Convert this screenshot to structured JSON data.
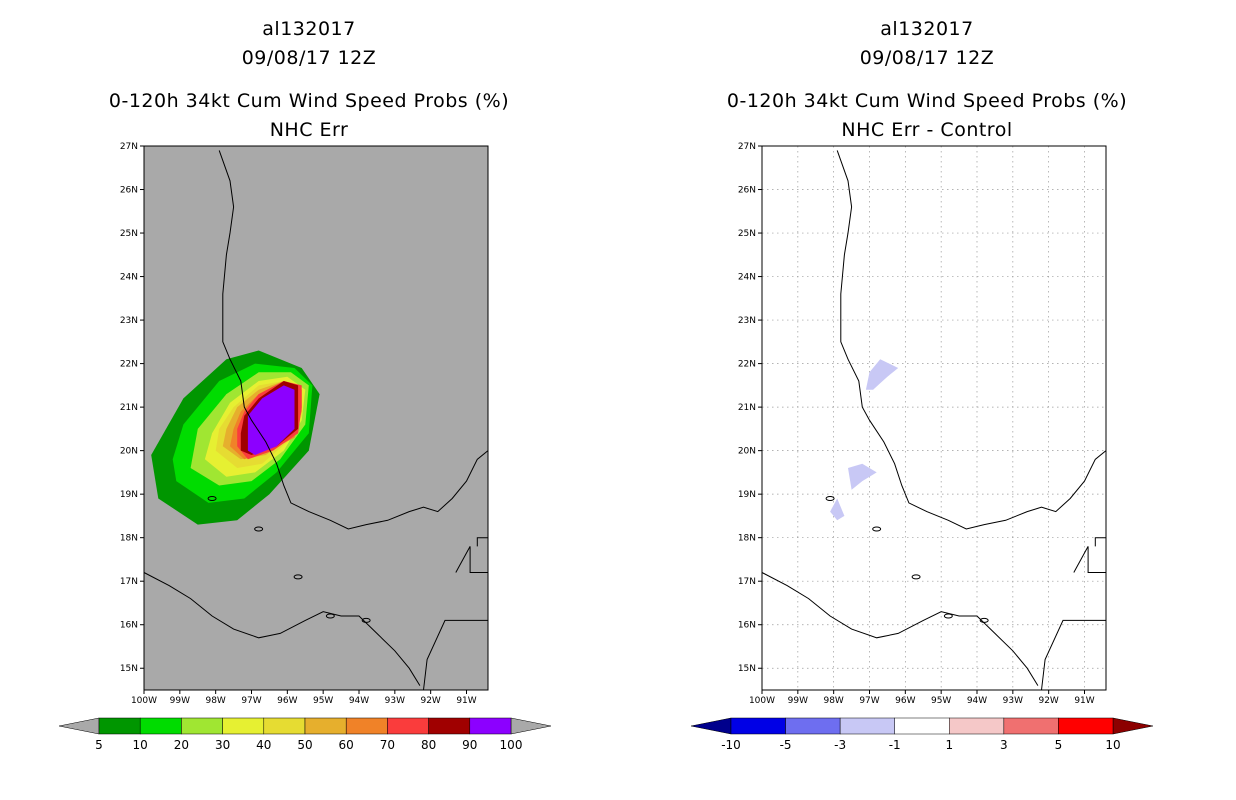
{
  "chart_data": [
    {
      "type": "contour-map",
      "title_lines": [
        "al132017",
        "09/08/17 12Z",
        "0-120h 34kt Cum Wind Speed Probs (%)",
        "NHC Err"
      ],
      "lon_range": [
        -100,
        -90.4
      ],
      "lat_range": [
        14.5,
        27
      ],
      "x_tick_labels": [
        "100W",
        "99W",
        "98W",
        "97W",
        "96W",
        "95W",
        "94W",
        "93W",
        "92W",
        "91W"
      ],
      "y_tick_labels": [
        "15N",
        "16N",
        "17N",
        "18N",
        "19N",
        "20N",
        "21N",
        "22N",
        "23N",
        "24N",
        "25N",
        "26N",
        "27N"
      ],
      "grid": false,
      "background_color": "#a9a9a9",
      "colorbar": {
        "levels": [
          "5",
          "10",
          "20",
          "30",
          "40",
          "50",
          "60",
          "70",
          "80",
          "90",
          "100"
        ],
        "colors": [
          "#009600",
          "#00dc00",
          "#a0e632",
          "#e6f032",
          "#e6dc32",
          "#e6af2d",
          "#f08228",
          "#fa3c3c",
          "#a00000",
          "#8c00ff"
        ],
        "extend_low_color": "#a9a9a9",
        "extend_high_color": "#a9a9a9"
      },
      "contours": [
        {
          "level": 5,
          "color": "#009600",
          "polygon": [
            [
              -99.6,
              18.9
            ],
            [
              -98.5,
              18.3
            ],
            [
              -97.4,
              18.4
            ],
            [
              -96.5,
              19.0
            ],
            [
              -95.4,
              20.0
            ],
            [
              -95.1,
              21.3
            ],
            [
              -95.6,
              21.9
            ],
            [
              -96.8,
              22.3
            ],
            [
              -97.7,
              22.1
            ],
            [
              -98.9,
              21.2
            ],
            [
              -99.8,
              19.9
            ]
          ]
        },
        {
          "level": 10,
          "color": "#00dc00",
          "polygon": [
            [
              -99.1,
              19.3
            ],
            [
              -98.2,
              18.8
            ],
            [
              -97.2,
              18.9
            ],
            [
              -96.3,
              19.5
            ],
            [
              -95.4,
              20.4
            ],
            [
              -95.3,
              21.5
            ],
            [
              -95.8,
              21.9
            ],
            [
              -96.9,
              22.0
            ],
            [
              -97.9,
              21.6
            ],
            [
              -98.9,
              20.6
            ],
            [
              -99.2,
              19.8
            ]
          ]
        },
        {
          "level": 20,
          "color": "#a0e632",
          "polygon": [
            [
              -98.7,
              19.6
            ],
            [
              -97.9,
              19.2
            ],
            [
              -97.0,
              19.3
            ],
            [
              -96.2,
              19.8
            ],
            [
              -95.5,
              20.6
            ],
            [
              -95.4,
              21.5
            ],
            [
              -95.9,
              21.8
            ],
            [
              -96.8,
              21.8
            ],
            [
              -97.7,
              21.3
            ],
            [
              -98.5,
              20.5
            ]
          ]
        },
        {
          "level": 30,
          "color": "#e6f032",
          "polygon": [
            [
              -98.3,
              19.8
            ],
            [
              -97.7,
              19.4
            ],
            [
              -96.9,
              19.5
            ],
            [
              -96.1,
              20.0
            ],
            [
              -95.6,
              20.7
            ],
            [
              -95.5,
              21.4
            ],
            [
              -96.0,
              21.7
            ],
            [
              -96.8,
              21.6
            ],
            [
              -97.6,
              21.1
            ],
            [
              -98.1,
              20.4
            ]
          ]
        },
        {
          "level": 40,
          "color": "#e6dc32",
          "polygon": [
            [
              -98.0,
              20.0
            ],
            [
              -97.4,
              19.6
            ],
            [
              -96.7,
              19.7
            ],
            [
              -96.0,
              20.2
            ],
            [
              -95.6,
              20.8
            ],
            [
              -95.6,
              21.4
            ],
            [
              -96.1,
              21.6
            ],
            [
              -96.8,
              21.5
            ],
            [
              -97.5,
              21.0
            ],
            [
              -97.9,
              20.5
            ]
          ]
        },
        {
          "level": 50,
          "color": "#e6af2d",
          "polygon": [
            [
              -97.8,
              20.1
            ],
            [
              -97.3,
              19.8
            ],
            [
              -96.6,
              19.9
            ],
            [
              -95.9,
              20.3
            ],
            [
              -95.6,
              20.9
            ],
            [
              -95.6,
              21.4
            ],
            [
              -96.1,
              21.6
            ],
            [
              -96.8,
              21.4
            ],
            [
              -97.4,
              21.0
            ],
            [
              -97.7,
              20.5
            ]
          ]
        },
        {
          "level": 60,
          "color": "#f08228",
          "polygon": [
            [
              -97.6,
              20.1
            ],
            [
              -97.2,
              19.8
            ],
            [
              -96.5,
              20.0
            ],
            [
              -95.8,
              20.3
            ],
            [
              -95.6,
              20.9
            ],
            [
              -95.6,
              21.4
            ],
            [
              -96.1,
              21.6
            ],
            [
              -96.8,
              21.3
            ],
            [
              -97.3,
              20.9
            ],
            [
              -97.5,
              20.5
            ]
          ]
        },
        {
          "level": 70,
          "color": "#fa3c3c",
          "polygon": [
            [
              -97.4,
              20.1
            ],
            [
              -97.1,
              19.8
            ],
            [
              -96.4,
              20.0
            ],
            [
              -95.7,
              20.4
            ],
            [
              -95.6,
              21.0
            ],
            [
              -95.6,
              21.5
            ],
            [
              -96.1,
              21.6
            ],
            [
              -96.8,
              21.3
            ],
            [
              -97.2,
              20.9
            ],
            [
              -97.4,
              20.5
            ]
          ]
        },
        {
          "level": 80,
          "color": "#a00000",
          "polygon": [
            [
              -97.3,
              20.0
            ],
            [
              -97.0,
              19.9
            ],
            [
              -96.3,
              20.1
            ],
            [
              -95.7,
              20.5
            ],
            [
              -95.7,
              21.0
            ],
            [
              -95.7,
              21.5
            ],
            [
              -96.1,
              21.6
            ],
            [
              -96.8,
              21.2
            ],
            [
              -97.2,
              20.8
            ],
            [
              -97.3,
              20.4
            ]
          ]
        },
        {
          "level": 90,
          "color": "#8c00ff",
          "polygon": [
            [
              -97.1,
              20.0
            ],
            [
              -96.9,
              19.9
            ],
            [
              -96.3,
              20.1
            ],
            [
              -95.8,
              20.5
            ],
            [
              -95.8,
              21.0
            ],
            [
              -95.8,
              21.4
            ],
            [
              -96.1,
              21.5
            ],
            [
              -96.7,
              21.2
            ],
            [
              -97.1,
              20.8
            ],
            [
              -97.1,
              20.4
            ]
          ]
        }
      ]
    },
    {
      "type": "contour-map",
      "title_lines": [
        "al132017",
        "09/08/17 12Z",
        "0-120h 34kt Cum Wind Speed Probs (%)",
        "NHC Err - Control"
      ],
      "lon_range": [
        -100,
        -90.4
      ],
      "lat_range": [
        14.5,
        27
      ],
      "x_tick_labels": [
        "100W",
        "99W",
        "98W",
        "97W",
        "96W",
        "95W",
        "94W",
        "93W",
        "92W",
        "91W"
      ],
      "y_tick_labels": [
        "15N",
        "16N",
        "17N",
        "18N",
        "19N",
        "20N",
        "21N",
        "22N",
        "23N",
        "24N",
        "25N",
        "26N",
        "27N"
      ],
      "grid": true,
      "background_color": "#ffffff",
      "colorbar": {
        "levels": [
          "-10",
          "-5",
          "-3",
          "-1",
          "1",
          "3",
          "5",
          "10"
        ],
        "colors": [
          "#0000e6",
          "#6e6ef0",
          "#c8c8f5",
          "#ffffff",
          "#f5c8c8",
          "#f07070",
          "#ff0000"
        ],
        "extend_low_color": "#00008c",
        "extend_high_color": "#8c0000"
      },
      "contours": [
        {
          "level": -3,
          "color": "#c8c8f5",
          "polygon": [
            [
              -97.1,
              21.4
            ],
            [
              -97.0,
              21.8
            ],
            [
              -96.7,
              22.1
            ],
            [
              -96.2,
              21.9
            ],
            [
              -96.5,
              21.7
            ],
            [
              -96.9,
              21.4
            ]
          ]
        },
        {
          "level": -3,
          "color": "#c8c8f5",
          "polygon": [
            [
              -97.5,
              19.1
            ],
            [
              -97.6,
              19.6
            ],
            [
              -97.2,
              19.7
            ],
            [
              -96.8,
              19.5
            ],
            [
              -97.2,
              19.3
            ]
          ]
        },
        {
          "level": -3,
          "color": "#c8c8f5",
          "polygon": [
            [
              -97.9,
              18.4
            ],
            [
              -98.1,
              18.6
            ],
            [
              -97.9,
              18.9
            ],
            [
              -97.7,
              18.5
            ]
          ]
        }
      ]
    }
  ]
}
